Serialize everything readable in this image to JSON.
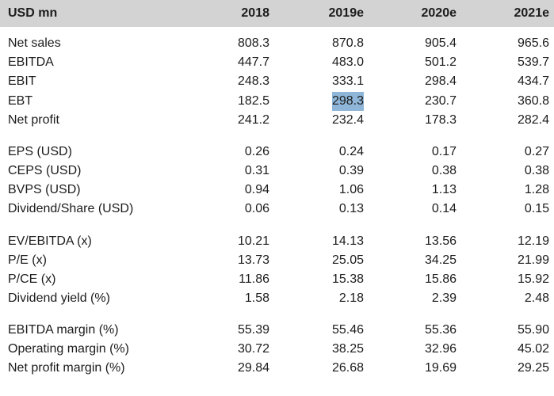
{
  "header": {
    "unit_label": "USD mn",
    "years": [
      "2018",
      "2019e",
      "2020e",
      "2021e"
    ]
  },
  "rows": [
    {
      "label": "Net sales",
      "values": [
        "808.3",
        "870.8",
        "905.4",
        "965.6"
      ]
    },
    {
      "label": "EBITDA",
      "values": [
        "447.7",
        "483.0",
        "501.2",
        "539.7"
      ]
    },
    {
      "label": "EBIT",
      "values": [
        "248.3",
        "333.1",
        "298.4",
        "434.7"
      ]
    },
    {
      "label": "EBT",
      "values": [
        "182.5",
        "298.3",
        "230.7",
        "360.8"
      ]
    },
    {
      "label": "Net profit",
      "values": [
        "241.2",
        "232.4",
        "178.3",
        "282.4"
      ]
    },
    {
      "label": "EPS (USD)",
      "values": [
        "0.26",
        "0.24",
        "0.17",
        "0.27"
      ]
    },
    {
      "label": "CEPS (USD)",
      "values": [
        "0.31",
        "0.39",
        "0.38",
        "0.38"
      ]
    },
    {
      "label": "BVPS (USD)",
      "values": [
        "0.94",
        "1.06",
        "1.13",
        "1.28"
      ]
    },
    {
      "label": "Dividend/Share (USD)",
      "values": [
        "0.06",
        "0.13",
        "0.14",
        "0.15"
      ]
    },
    {
      "label": "EV/EBITDA (x)",
      "values": [
        "10.21",
        "14.13",
        "13.56",
        "12.19"
      ]
    },
    {
      "label": "P/E (x)",
      "values": [
        "13.73",
        "25.05",
        "34.25",
        "21.99"
      ]
    },
    {
      "label": "P/CE (x)",
      "values": [
        "11.86",
        "15.38",
        "15.86",
        "15.92"
      ]
    },
    {
      "label": "Dividend yield (%)",
      "values": [
        "1.58",
        "2.18",
        "2.39",
        "2.48"
      ]
    },
    {
      "label": "EBITDA margin (%)",
      "values": [
        "55.39",
        "55.46",
        "55.36",
        "55.90"
      ]
    },
    {
      "label": "Operating margin (%)",
      "values": [
        "30.72",
        "38.25",
        "32.96",
        "45.02"
      ]
    },
    {
      "label": "Net profit margin (%)",
      "values": [
        "29.84",
        "26.68",
        "19.69",
        "29.25"
      ]
    }
  ],
  "highlight_color": "#8fb6d8",
  "header_bg_color": "#d3d3d3"
}
